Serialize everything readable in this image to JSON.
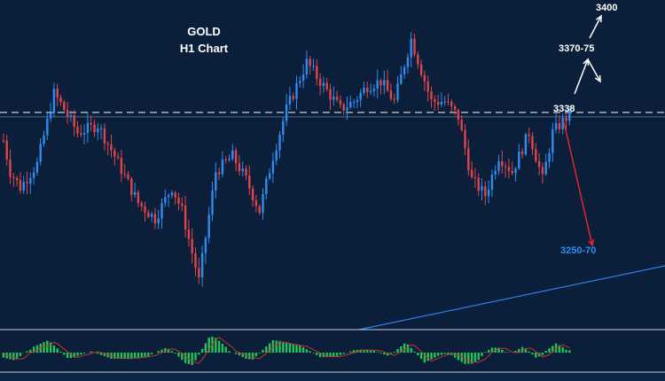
{
  "chart_data": [
    {
      "type": "candlestick",
      "title": "GOLD",
      "subtitle": "H1 Chart",
      "ylim": [
        3200,
        3410
      ],
      "levels": [
        {
          "label": "3400",
          "value": 3400
        },
        {
          "label": "3370-75",
          "value": 3372
        },
        {
          "label": "3338",
          "value": 3338
        },
        {
          "label": "3250-70",
          "value": 3260
        }
      ],
      "resistance_value": 3338,
      "path_points": [
        [
          0,
          3320
        ],
        [
          2,
          3300
        ],
        [
          5,
          3290
        ],
        [
          10,
          3305
        ],
        [
          15,
          3350
        ],
        [
          18,
          3340
        ],
        [
          22,
          3325
        ],
        [
          28,
          3330
        ],
        [
          33,
          3310
        ],
        [
          40,
          3280
        ],
        [
          45,
          3270
        ],
        [
          50,
          3290
        ],
        [
          53,
          3275
        ],
        [
          58,
          3230
        ],
        [
          63,
          3300
        ],
        [
          68,
          3310
        ],
        [
          72,
          3295
        ],
        [
          76,
          3275
        ],
        [
          80,
          3310
        ],
        [
          84,
          3340
        ],
        [
          90,
          3370
        ],
        [
          95,
          3355
        ],
        [
          100,
          3340
        ],
        [
          104,
          3345
        ],
        [
          108,
          3355
        ],
        [
          112,
          3358
        ],
        [
          116,
          3345
        ],
        [
          121,
          3385
        ],
        [
          124,
          3365
        ],
        [
          127,
          3345
        ],
        [
          131,
          3345
        ],
        [
          135,
          3335
        ],
        [
          139,
          3295
        ],
        [
          143,
          3285
        ],
        [
          147,
          3310
        ],
        [
          151,
          3300
        ],
        [
          156,
          3325
        ],
        [
          160,
          3295
        ],
        [
          163,
          3325
        ],
        [
          168,
          3337
        ]
      ],
      "bull_color": "#2e8cf0",
      "bear_color": "#e0454a",
      "forecast_up_color": "#ffffff",
      "forecast_down_color": "#e02828",
      "trendline_color": "#2f7de1"
    },
    {
      "type": "histogram",
      "name": "oscillator",
      "color": "#23c35a",
      "signal_color": "#c0392b",
      "values_amplitude": 1
    }
  ]
}
